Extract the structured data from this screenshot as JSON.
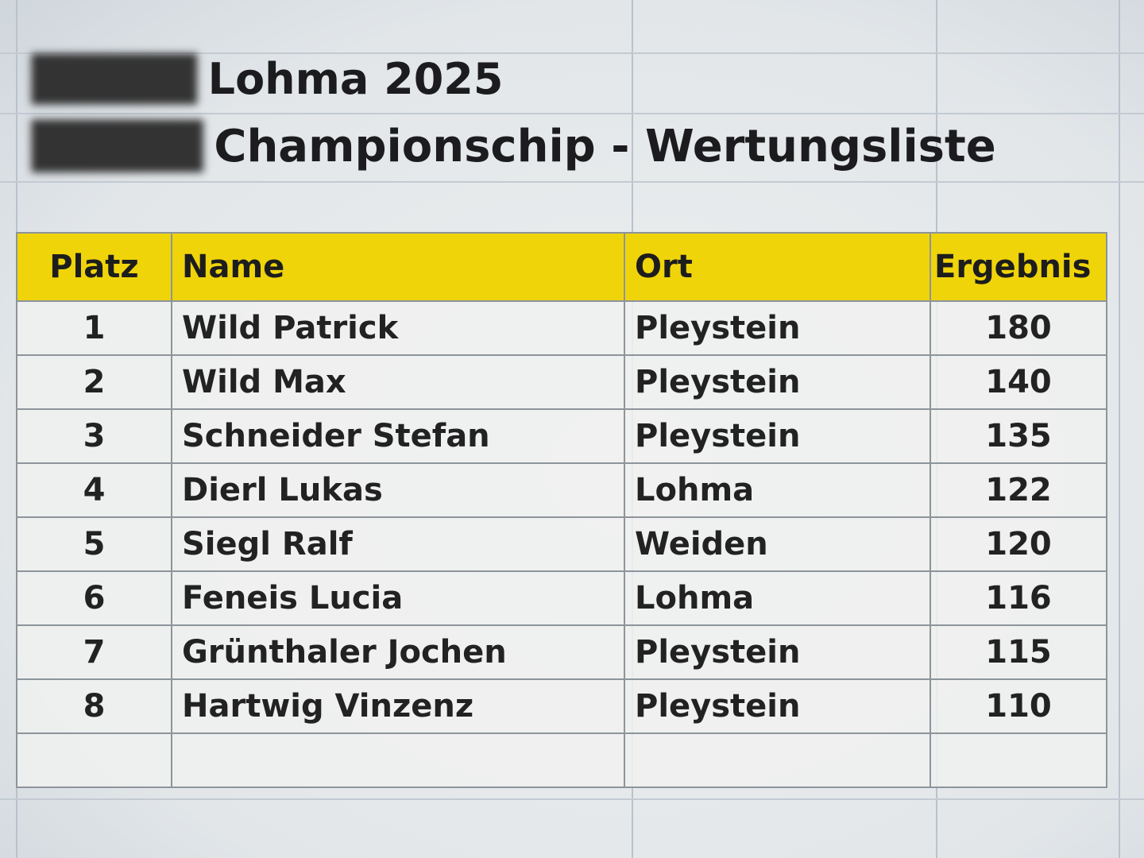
{
  "title_line1": "Lohma 2025",
  "title_line2": "Championschip - Wertungsliste",
  "colors": {
    "header_fill": "#efd40a",
    "grid": "#8d949b"
  },
  "table": {
    "headers": [
      "Platz",
      "Name",
      "Ort",
      "Ergebnis"
    ],
    "rows": [
      [
        "1",
        "Wild Patrick",
        "Pleystein",
        "180"
      ],
      [
        "2",
        "Wild Max",
        "Pleystein",
        "140"
      ],
      [
        "3",
        "Schneider Stefan",
        "Pleystein",
        "135"
      ],
      [
        "4",
        "Dierl Lukas",
        "Lohma",
        "122"
      ],
      [
        "5",
        "Siegl Ralf",
        "Weiden",
        "120"
      ],
      [
        "6",
        "Feneis Lucia",
        "Lohma",
        "116"
      ],
      [
        "7",
        "Grünthaler Jochen",
        "Pleystein",
        "115"
      ],
      [
        "8",
        "Hartwig Vinzenz",
        "Pleystein",
        "110"
      ]
    ]
  }
}
